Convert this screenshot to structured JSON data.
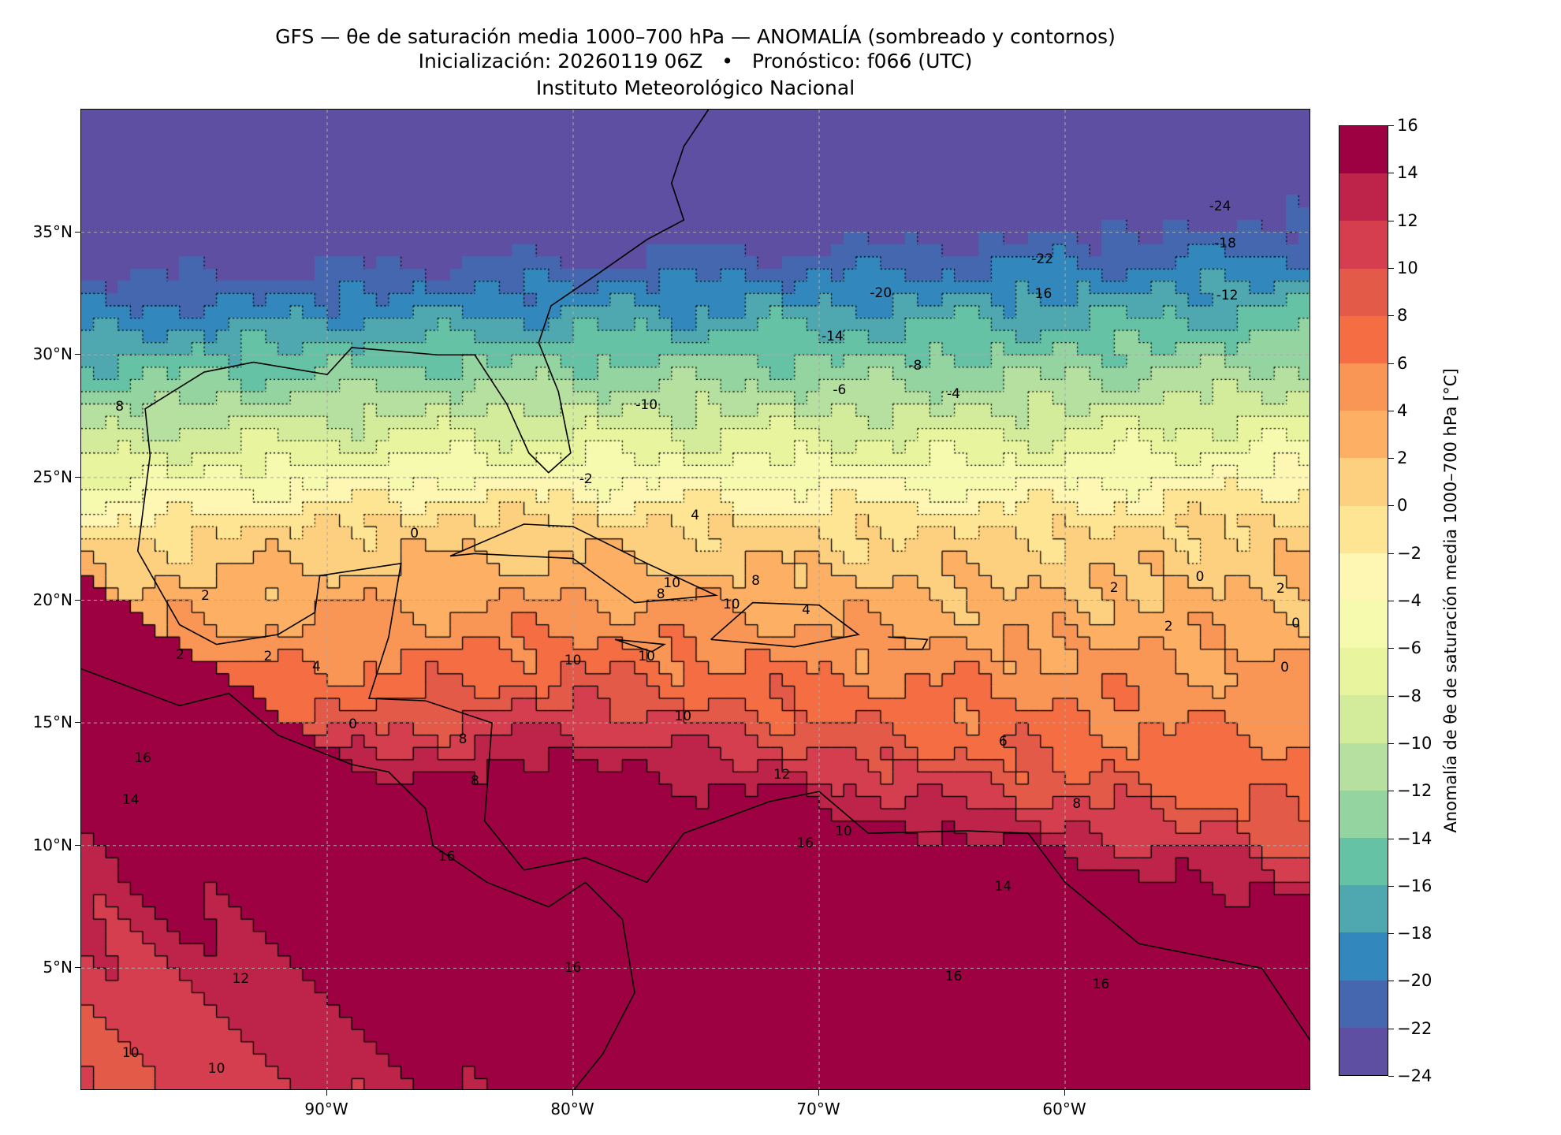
{
  "chart_data": {
    "type": "heatmap",
    "title": "GFS — θe de saturación media 1000–700 hPa — ANOMALÍA (sombreado y contornos)",
    "subtitle": "Inicialización: 20260119 06Z   •   Pronóstico: f066 (UTC)",
    "institution": "Instituto Meteorológico Nacional",
    "xlim": [
      -100,
      -50
    ],
    "ylim": [
      0,
      40
    ],
    "x_ticks": [
      -90,
      -80,
      -70,
      -60
    ],
    "x_tick_labels": [
      "90°W",
      "80°W",
      "70°W",
      "60°W"
    ],
    "y_ticks": [
      35,
      30,
      25,
      20,
      15,
      10,
      5
    ],
    "y_tick_labels": [
      "35°N",
      "30°N",
      "25°N",
      "20°N",
      "15°N",
      "10°N",
      "5°N"
    ],
    "grid": true,
    "colorbar": {
      "label": "Anomalía de θe de saturación media 1000–700 hPa [°C]",
      "levels": [
        -24,
        -22,
        -20,
        -18,
        -16,
        -14,
        -12,
        -10,
        -8,
        -6,
        -4,
        -2,
        0,
        2,
        4,
        6,
        8,
        10,
        12,
        14,
        16
      ],
      "tick_labels": [
        "−24",
        "−22",
        "−20",
        "−18",
        "−16",
        "−14",
        "−12",
        "−10",
        "−8",
        "−6",
        "−4",
        "−2",
        "0",
        "2",
        "4",
        "6",
        "8",
        "10",
        "12",
        "14",
        "16"
      ],
      "colors": [
        "#5e4fa2",
        "#4467b0",
        "#3288bd",
        "#4fa8b0",
        "#66c2a5",
        "#93d4a0",
        "#b5e0a0",
        "#d3ec9c",
        "#e9f59e",
        "#f6faaf",
        "#fef7b3",
        "#fee593",
        "#fdd07f",
        "#fdb063",
        "#f99555",
        "#f46d43",
        "#e45a49",
        "#d53e4f",
        "#be2449",
        "#9e0142"
      ]
    },
    "contour_labels": [
      "-24",
      "-22",
      "-18",
      "-20",
      "16",
      "-12",
      "-14",
      "-8",
      "-6",
      "-4",
      "-10",
      "8",
      "-2",
      "0",
      "4",
      "2",
      "10",
      "8",
      "8",
      "10",
      "4",
      "10",
      "10",
      "2",
      "2",
      "4",
      "0",
      "10",
      "6",
      "8",
      "12",
      "8",
      "8",
      "16",
      "14",
      "16",
      "16",
      "10",
      "14",
      "16",
      "12",
      "16",
      "16",
      "10",
      "10",
      "0",
      "2",
      "2",
      "2",
      "0",
      "0"
    ]
  }
}
